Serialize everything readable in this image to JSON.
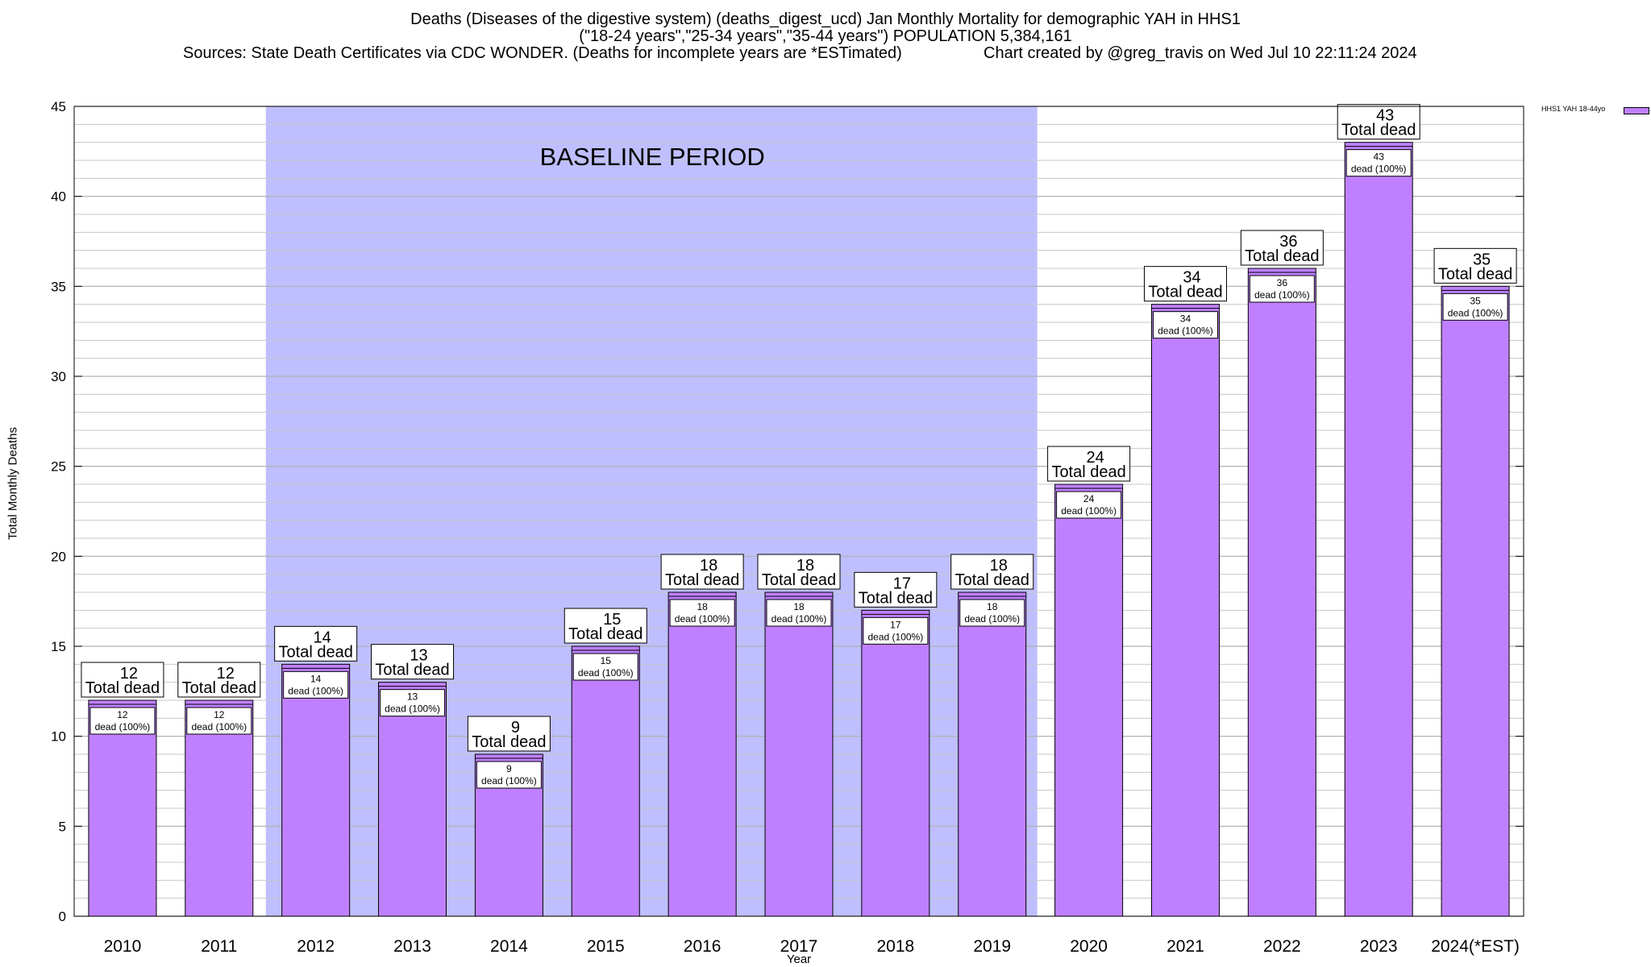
{
  "chart_data": {
    "type": "bar",
    "title": "Deaths (Diseases of the digestive system) (deaths_digest_ucd) Jan Monthly Mortality for demographic YAH in HHS1",
    "subtitle": "(\"18-24 years\",\"25-34 years\",\"35-44 years\") POPULATION 5,384,161",
    "source": "Sources: State Death Certificates via CDC WONDER. (Deaths for incomplete years are *ESTimated)",
    "credit": "Chart created by @greg_travis on Wed Jul 10 22:11:24 2024",
    "xlabel": "Year",
    "ylabel": "Total Monthly Deaths",
    "ylim": [
      0,
      45
    ],
    "yticks": [
      0,
      5,
      10,
      15,
      20,
      25,
      30,
      35,
      40,
      45
    ],
    "grid": true,
    "legend_position": "top-right",
    "baseline_label": "BASELINE PERIOD",
    "baseline_range": [
      "2012",
      "2019"
    ],
    "categories": [
      "2010",
      "2011",
      "2012",
      "2013",
      "2014",
      "2015",
      "2016",
      "2017",
      "2018",
      "2019",
      "2020",
      "2021",
      "2022",
      "2023",
      "2024(*EST)"
    ],
    "series": [
      {
        "name": "HHS1 YAH 18-44yo",
        "values": [
          12,
          12,
          14,
          13,
          9,
          15,
          18,
          18,
          17,
          18,
          24,
          34,
          36,
          43,
          35
        ]
      }
    ],
    "label_total_text": "Total dead",
    "label_inner_text": "dead (100%)",
    "colors": {
      "bar": "#bf80ff",
      "baseline": "#bfbfff",
      "grid": "#c8c8c8"
    }
  }
}
